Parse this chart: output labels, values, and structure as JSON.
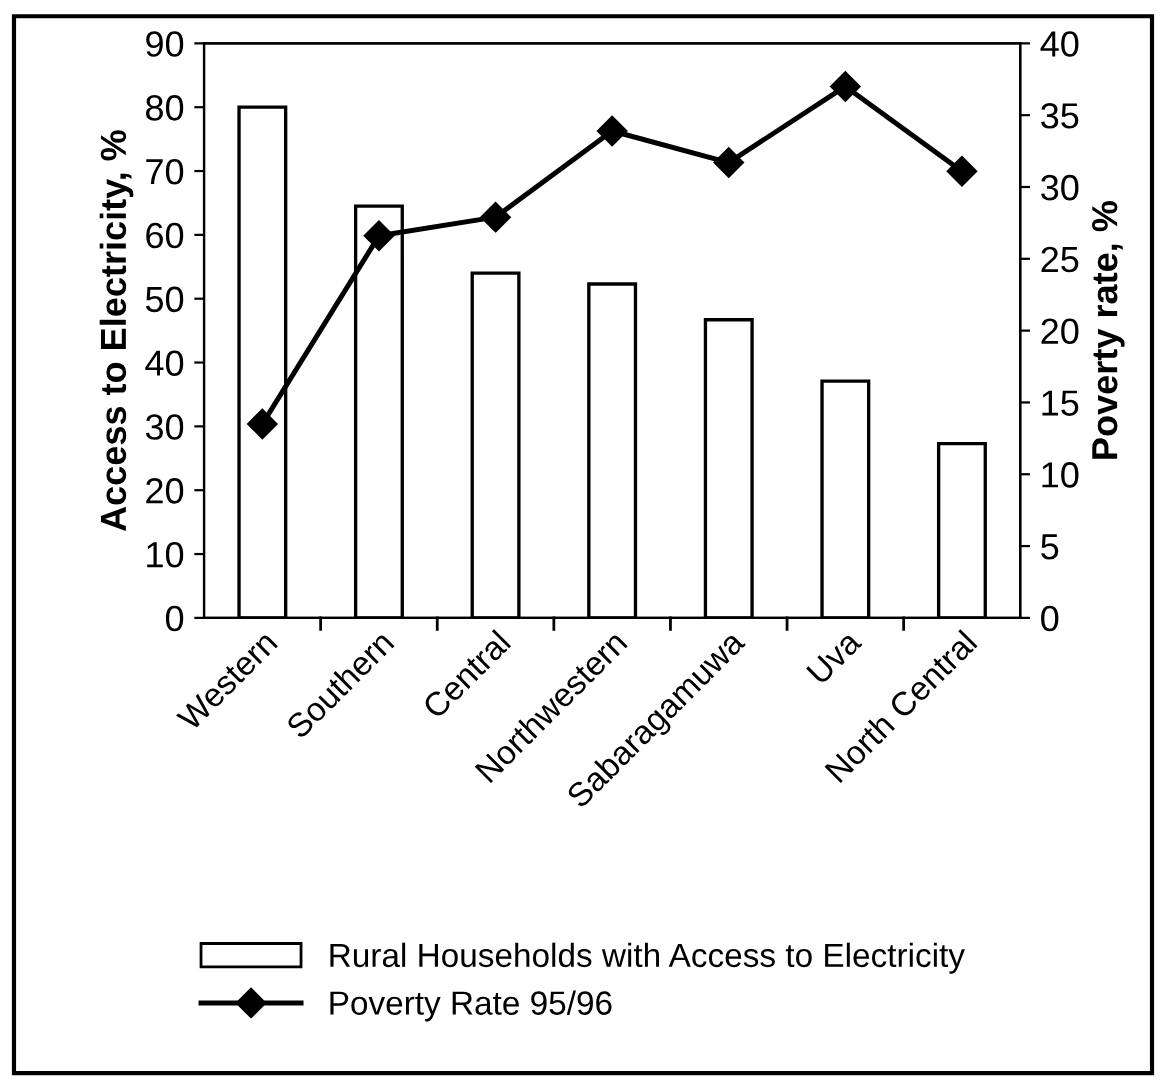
{
  "chart_data": {
    "type": "bar",
    "ylabel": "Access to Electricity, %",
    "y2label": "Poverty rate, %",
    "categories": [
      "Western",
      "Southern",
      "Central",
      "Northwestern",
      "Sabaragamuwa",
      "Uva",
      "North Central"
    ],
    "series": [
      {
        "name": "Rural Households with Access to Electricity",
        "color": "#ffffff",
        "values": [
          80,
          64.5,
          54,
          52.3,
          46.7,
          37.1,
          27.3
        ]
      },
      {
        "name": "Poverty Rate 95/96",
        "type": "line",
        "axis": "y2",
        "color": "#000000",
        "marker": "diamond",
        "values": [
          13.5,
          26.6,
          27.9,
          33.9,
          31.7,
          37.0,
          31.1
        ]
      }
    ],
    "ylim": [
      0,
      90
    ],
    "yticks": [
      0,
      10,
      20,
      30,
      40,
      50,
      60,
      70,
      80,
      90
    ],
    "y2lim": [
      0,
      40
    ],
    "y2ticks": [
      0,
      5,
      10,
      15,
      20,
      25,
      30,
      35,
      40
    ],
    "grid": false,
    "legend": "bottom"
  }
}
